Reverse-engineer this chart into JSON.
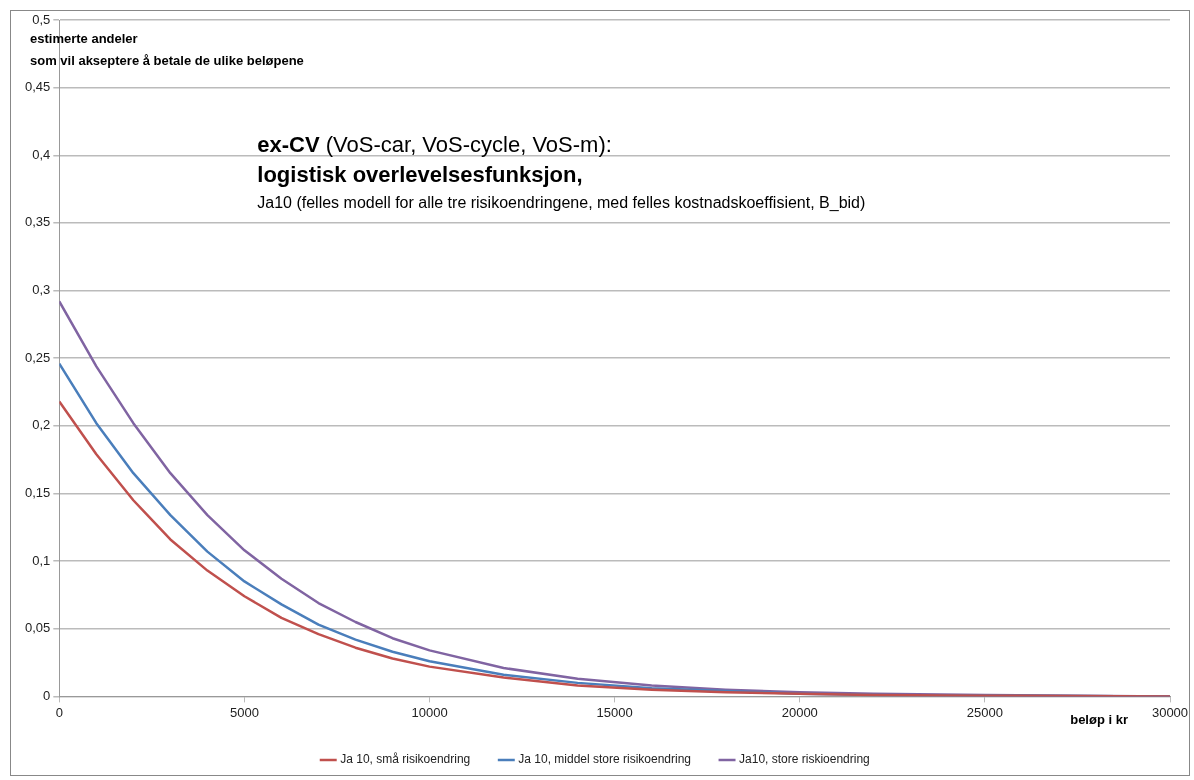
{
  "chart_data": {
    "type": "line",
    "title": "ex-CV (VoS-car, VoS-cycle, VoS-m):",
    "subtitle": "logistisk overlevelsesfunksjon,",
    "annotations": [
      "Ja10 (felles modell for alle tre risikoendringene, med felles kostnadskoeffisient, B_bid)"
    ],
    "xlabel": "beløp i kr",
    "ylabel": "estimerte andeler\nsom vil akseptere å betale de ulike beløpene",
    "x": [
      0,
      1000,
      2000,
      3000,
      4000,
      5000,
      6000,
      7000,
      8000,
      9000,
      10000,
      12000,
      14000,
      16000,
      18000,
      20000,
      22000,
      25000,
      30000
    ],
    "series": [
      {
        "name": "Ja 10, små risikoendring",
        "color": "#c0504d",
        "values": [
          0.218,
          0.179,
          0.145,
          0.116,
          0.093,
          0.074,
          0.058,
          0.046,
          0.036,
          0.028,
          0.022,
          0.014,
          0.008,
          0.005,
          0.003,
          0.002,
          0.001,
          0.0005,
          0
        ]
      },
      {
        "name": "Ja 10, middel store risikoendring",
        "color": "#4a7ebb",
        "values": [
          0.246,
          0.202,
          0.165,
          0.134,
          0.107,
          0.085,
          0.068,
          0.053,
          0.042,
          0.033,
          0.026,
          0.016,
          0.01,
          0.006,
          0.004,
          0.002,
          0.001,
          0.0005,
          0
        ]
      },
      {
        "name": "Ja10, store riskioendring",
        "color": "#8064a2",
        "values": [
          0.292,
          0.244,
          0.202,
          0.165,
          0.134,
          0.108,
          0.087,
          0.069,
          0.055,
          0.043,
          0.034,
          0.021,
          0.013,
          0.008,
          0.005,
          0.003,
          0.002,
          0.001,
          0
        ]
      }
    ],
    "xlim": [
      0,
      30000
    ],
    "xticks": [
      0,
      5000,
      10000,
      15000,
      20000,
      25000,
      30000
    ],
    "ylim": [
      0,
      0.5
    ],
    "yticks": [
      0,
      {
        "value": 0.05,
        "label": "0,05"
      },
      {
        "value": 0.1,
        "label": "0,1"
      },
      {
        "value": 0.15,
        "label": "0,15"
      },
      {
        "value": 0.2,
        "label": "0,2"
      },
      {
        "value": 0.25,
        "label": "0,25"
      },
      {
        "value": 0.3,
        "label": "0,3"
      },
      {
        "value": 0.35,
        "label": "0,35"
      },
      {
        "value": 0.4,
        "label": "0,4"
      },
      {
        "value": 0.45,
        "label": "0,45"
      },
      {
        "value": 0.5,
        "label": "0,5"
      }
    ],
    "grid": "y",
    "legend": "bottom",
    "marker": "none",
    "line_style": "solid"
  }
}
